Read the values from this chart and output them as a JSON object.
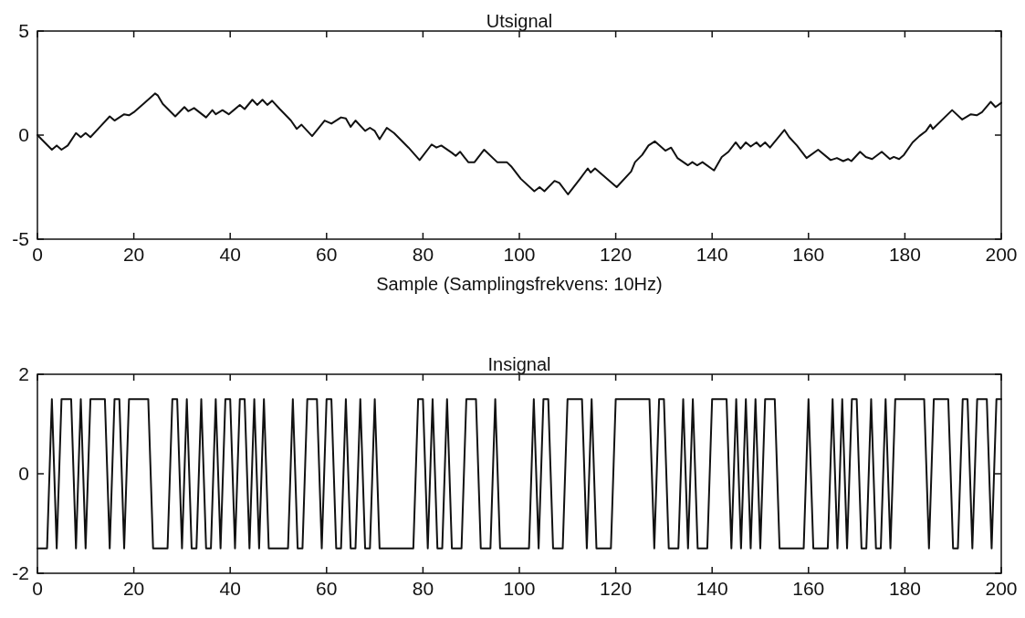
{
  "chart_data": [
    {
      "type": "line",
      "title": "Utsignal",
      "xlabel": "Sample (Samplingsfrekvens: 10Hz)",
      "xlim": [
        0,
        200
      ],
      "xticks": [
        0,
        20,
        40,
        60,
        80,
        100,
        120,
        140,
        160,
        180,
        200
      ],
      "ylim": [
        -5,
        5
      ],
      "yticks": [
        -5,
        0,
        5
      ],
      "series": [
        {
          "color": "#111111",
          "x": [
            0,
            3,
            4,
            5,
            6.3,
            8,
            9,
            10,
            11,
            13,
            15,
            16,
            18,
            19,
            20,
            22,
            24.4,
            25,
            26,
            28.6,
            30.5,
            31.3,
            32.5,
            35,
            36.3,
            37,
            38.4,
            39.7,
            42,
            43,
            44.6,
            45.6,
            46.7,
            47.7,
            48.7,
            50.3,
            52.6,
            53.8,
            54.8,
            57,
            59.6,
            61,
            63,
            64,
            65,
            66,
            68,
            69,
            70,
            71,
            72.5,
            74,
            77,
            79.3,
            81.8,
            82.8,
            83.8,
            86,
            86.8,
            87.7,
            89.4,
            90.7,
            92.7,
            95.4,
            97.4,
            98.3,
            100.3,
            103.1,
            104.2,
            105.2,
            107.3,
            108.3,
            110.1,
            112.6,
            114.2,
            114.8,
            115.7,
            120.2,
            123.2,
            124,
            125.5,
            126.8,
            128.1,
            130.3,
            131.5,
            132.8,
            135,
            135.9,
            136.9,
            138,
            140.4,
            142,
            143.4,
            144.9,
            145.9,
            147,
            148,
            149.2,
            150,
            151,
            152,
            155,
            156,
            157.6,
            159.6,
            162,
            164.6,
            165.9,
            167.2,
            168.2,
            168.9,
            170.7,
            171.9,
            173.2,
            175.2,
            176.9,
            177.7,
            178.8,
            179.8,
            181.6,
            183,
            184.4,
            185.3,
            185.8,
            189.8,
            191.9,
            193.7,
            194.9,
            196,
            197.8,
            198.8,
            200
          ],
          "values": [
            0,
            -0.7,
            -0.5,
            -0.7,
            -0.5,
            0.1,
            -0.1,
            0.1,
            -0.1,
            0.4,
            0.9,
            0.7,
            1.0,
            0.95,
            1.1,
            1.5,
            2.0,
            1.9,
            1.5,
            0.9,
            1.35,
            1.15,
            1.3,
            0.85,
            1.2,
            1.0,
            1.2,
            1.0,
            1.45,
            1.25,
            1.7,
            1.45,
            1.7,
            1.45,
            1.65,
            1.25,
            0.7,
            0.3,
            0.5,
            -0.05,
            0.7,
            0.55,
            0.85,
            0.8,
            0.4,
            0.7,
            0.2,
            0.35,
            0.2,
            -0.2,
            0.35,
            0.1,
            -0.6,
            -1.2,
            -0.45,
            -0.6,
            -0.5,
            -0.85,
            -1.0,
            -0.8,
            -1.3,
            -1.3,
            -0.7,
            -1.3,
            -1.3,
            -1.5,
            -2.1,
            -2.7,
            -2.5,
            -2.7,
            -2.2,
            -2.3,
            -2.85,
            -2.1,
            -1.6,
            -1.8,
            -1.6,
            -2.5,
            -1.75,
            -1.3,
            -0.95,
            -0.5,
            -0.3,
            -0.75,
            -0.6,
            -1.1,
            -1.45,
            -1.3,
            -1.45,
            -1.3,
            -1.7,
            -1.05,
            -0.8,
            -0.35,
            -0.65,
            -0.35,
            -0.55,
            -0.35,
            -0.55,
            -0.35,
            -0.6,
            0.25,
            -0.1,
            -0.5,
            -1.1,
            -0.7,
            -1.2,
            -1.1,
            -1.25,
            -1.15,
            -1.25,
            -0.8,
            -1.05,
            -1.15,
            -0.8,
            -1.15,
            -1.05,
            -1.15,
            -0.95,
            -0.35,
            -0.05,
            0.2,
            0.5,
            0.3,
            1.2,
            0.75,
            1.0,
            0.95,
            1.1,
            1.6,
            1.35,
            1.55
          ]
        }
      ]
    },
    {
      "type": "line",
      "title": "Insignal",
      "xlim": [
        0,
        200
      ],
      "xticks": [
        0,
        20,
        40,
        60,
        80,
        100,
        120,
        140,
        160,
        180,
        200
      ],
      "ylim": [
        -2,
        2
      ],
      "yticks": [
        -2,
        0,
        2
      ],
      "series": [
        {
          "color": "#111111",
          "x": [
            0,
            1,
            2,
            3,
            4,
            5,
            6,
            7,
            8,
            9,
            10,
            11,
            12,
            13,
            14,
            15,
            16,
            17,
            18,
            19,
            20,
            21,
            22,
            23,
            24,
            25,
            26,
            27,
            28,
            29,
            30,
            31,
            32,
            33,
            34,
            35,
            36,
            37,
            38,
            39,
            40,
            41,
            42,
            43,
            44,
            45,
            46,
            47,
            48,
            49,
            50,
            51,
            52,
            53,
            54,
            55,
            56,
            57,
            58,
            59,
            60,
            61,
            62,
            63,
            64,
            65,
            66,
            67,
            68,
            69,
            70,
            71,
            72,
            73,
            74,
            75,
            76,
            77,
            78,
            79,
            80,
            81,
            82,
            83,
            84,
            85,
            86,
            87,
            88,
            89,
            90,
            91,
            92,
            93,
            94,
            95,
            96,
            97,
            98,
            99,
            100,
            101,
            102,
            103,
            104,
            105,
            106,
            107,
            108,
            109,
            110,
            111,
            112,
            113,
            114,
            115,
            116,
            117,
            118,
            119,
            120,
            121,
            122,
            123,
            124,
            125,
            126,
            127,
            128,
            129,
            130,
            131,
            132,
            133,
            134,
            135,
            136,
            137,
            138,
            139,
            140,
            141,
            142,
            143,
            144,
            145,
            146,
            147,
            148,
            149,
            150,
            151,
            152,
            153,
            154,
            155,
            156,
            157,
            158,
            159,
            160,
            161,
            162,
            163,
            164,
            165,
            166,
            167,
            168,
            169,
            170,
            171,
            172,
            173,
            174,
            175,
            176,
            177,
            178,
            179,
            180,
            181,
            182,
            183,
            184,
            185,
            186,
            187,
            188,
            189,
            190,
            191,
            192,
            193,
            194,
            195,
            196,
            197,
            198,
            199,
            200
          ],
          "values": [
            -1.5,
            -1.5,
            -1.5,
            1.5,
            -1.5,
            1.5,
            1.5,
            1.5,
            -1.5,
            1.5,
            -1.5,
            1.5,
            1.5,
            1.5,
            1.5,
            -1.5,
            1.5,
            1.5,
            -1.5,
            1.5,
            1.5,
            1.5,
            1.5,
            1.5,
            -1.5,
            -1.5,
            -1.5,
            -1.5,
            1.5,
            1.5,
            -1.5,
            1.5,
            -1.5,
            -1.5,
            1.5,
            -1.5,
            -1.5,
            1.5,
            -1.5,
            1.5,
            1.5,
            -1.5,
            1.5,
            1.5,
            -1.5,
            1.5,
            -1.5,
            1.5,
            -1.5,
            -1.5,
            -1.5,
            -1.5,
            -1.5,
            1.5,
            -1.5,
            -1.5,
            1.5,
            1.5,
            1.5,
            -1.5,
            1.5,
            1.5,
            -1.5,
            -1.5,
            1.5,
            -1.5,
            -1.5,
            1.5,
            -1.5,
            -1.5,
            1.5,
            -1.5,
            -1.5,
            -1.5,
            -1.5,
            -1.5,
            -1.5,
            -1.5,
            -1.5,
            1.5,
            1.5,
            -1.5,
            1.5,
            -1.5,
            -1.5,
            1.5,
            -1.5,
            -1.5,
            -1.5,
            1.5,
            1.5,
            1.5,
            -1.5,
            -1.5,
            -1.5,
            1.5,
            -1.5,
            -1.5,
            -1.5,
            -1.5,
            -1.5,
            -1.5,
            -1.5,
            1.5,
            -1.5,
            1.5,
            1.5,
            -1.5,
            -1.5,
            -1.5,
            1.5,
            1.5,
            1.5,
            1.5,
            -1.5,
            1.5,
            -1.5,
            -1.5,
            -1.5,
            -1.5,
            1.5,
            1.5,
            1.5,
            1.5,
            1.5,
            1.5,
            1.5,
            1.5,
            -1.5,
            1.5,
            1.5,
            -1.5,
            -1.5,
            -1.5,
            1.5,
            -1.5,
            1.5,
            -1.5,
            -1.5,
            -1.5,
            1.5,
            1.5,
            1.5,
            1.5,
            -1.5,
            1.5,
            -1.5,
            1.5,
            -1.5,
            1.5,
            -1.5,
            1.5,
            1.5,
            1.5,
            -1.5,
            -1.5,
            -1.5,
            -1.5,
            -1.5,
            -1.5,
            1.5,
            -1.5,
            -1.5,
            -1.5,
            -1.5,
            1.5,
            -1.5,
            1.5,
            -1.5,
            1.5,
            1.5,
            -1.5,
            -1.5,
            1.5,
            -1.5,
            -1.5,
            1.5,
            -1.5,
            1.5,
            1.5,
            1.5,
            1.5,
            1.5,
            1.5,
            1.5,
            -1.5,
            1.5,
            1.5,
            1.5,
            1.5,
            -1.5,
            -1.5,
            1.5,
            1.5,
            -1.5,
            1.5,
            1.5,
            1.5,
            -1.5,
            1.5,
            1.5
          ]
        }
      ]
    }
  ]
}
